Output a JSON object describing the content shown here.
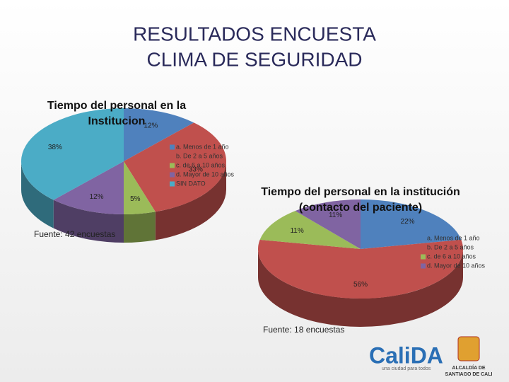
{
  "title_lines": [
    "RESULTADOS ENCUESTA",
    "CLIMA DE SEGURIDAD"
  ],
  "chart_data": [
    {
      "type": "pie",
      "title_lines": [
        "Tiempo del personal en la",
        "Institucion"
      ],
      "categories": [
        "a. Menos de 1 año",
        "b. De 2 a 5 años",
        "c. de 6 a 10 años",
        "d. Mayor de 10 años",
        "SIN DATO"
      ],
      "values": [
        12,
        33,
        5,
        12,
        38
      ],
      "value_labels": [
        "12%",
        "33%",
        "5%",
        "12%",
        "38%"
      ],
      "colors": [
        "#4f81bd",
        "#c0504d",
        "#9bbb59",
        "#8064a2",
        "#4bacc6"
      ],
      "source": "Fuente: 42 encuestas"
    },
    {
      "type": "pie",
      "title_lines": [
        "Tiempo del personal  en la institución",
        "(contacto del paciente)"
      ],
      "categories": [
        "a. Menos de 1 año",
        "b. De 2 a 5 años",
        "c. de 6 a 10 años",
        "d. Mayor de 10 años"
      ],
      "values": [
        22,
        56,
        11,
        11
      ],
      "value_labels": [
        "22%",
        "56%",
        "11%",
        "11%"
      ],
      "colors": [
        "#4f81bd",
        "#c0504d",
        "#9bbb59",
        "#8064a2"
      ],
      "source": "Fuente: 18 encuestas"
    }
  ],
  "footer": {
    "brand": "CaliDA",
    "tagline": "una ciudad para todos",
    "seal_lines": [
      "ALCALDÍA DE",
      "SANTIAGO DE CALI"
    ]
  }
}
